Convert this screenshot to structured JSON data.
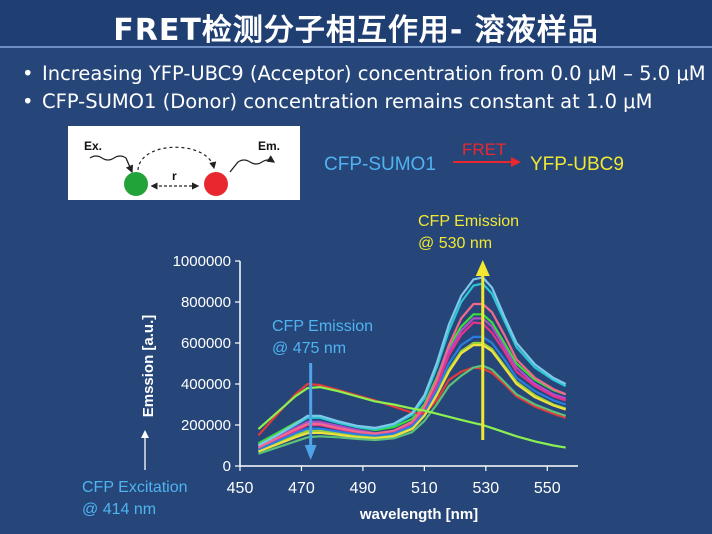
{
  "header": {
    "title": "FRET检测分子相互作用- 溶液样品"
  },
  "bullets": [
    "Increasing YFP-UBC9 (Acceptor) concentration from 0.0 μM – 5.0 μM",
    "CFP-SUMO1 (Donor) concentration remains constant at 1.0 μM"
  ],
  "scheme": {
    "ex_label": "Ex.",
    "em_label": "Em.",
    "r_label": "r",
    "donor_color": "#22a33a",
    "acceptor_color": "#e8282e"
  },
  "fret_equation": {
    "donor": "CFP-SUMO1",
    "label": "FRET",
    "acceptor": "YFP-UBC9"
  },
  "annotations": {
    "cfp_emission_530": [
      "CFP Emission",
      "@ 530 nm"
    ],
    "cfp_emission_475": [
      "CFP Emission",
      "@ 475 nm"
    ],
    "cfp_excitation": [
      "CFP Excitation",
      "@ 414 nm"
    ]
  },
  "colors": {
    "background": "#26467a",
    "title_bar": "#1f3f73",
    "cyan_text": "#4fb3f0",
    "yellow_text": "#f2e832",
    "red_text": "#e8282e"
  },
  "chart_data": {
    "type": "line",
    "xlabel": "wavelength [nm]",
    "ylabel": "Emssion [a.u.]",
    "xlim": [
      450,
      560
    ],
    "ylim": [
      0,
      1000000
    ],
    "xticks": [
      450,
      470,
      490,
      510,
      530,
      550
    ],
    "yticks": [
      0,
      200000,
      400000,
      600000,
      800000,
      1000000
    ],
    "ytick_labels": [
      "0",
      "200000",
      "400000",
      "600000",
      "800000",
      "1000000"
    ],
    "grid": false,
    "legend": "none",
    "x": [
      456,
      462,
      468,
      472,
      476,
      482,
      488,
      494,
      500,
      506,
      510,
      514,
      518,
      522,
      526,
      529,
      532,
      536,
      540,
      546,
      552,
      556
    ],
    "series": [
      {
        "color": "#3ddc3d",
        "values": [
          110000,
          160000,
          210000,
          240000,
          240000,
          215000,
          190000,
          175000,
          190000,
          230000,
          300000,
          430000,
          580000,
          680000,
          740000,
          740000,
          700000,
          600000,
          500000,
          420000,
          370000,
          350000
        ]
      },
      {
        "color": "#b04dc8",
        "values": [
          95000,
          140000,
          185000,
          215000,
          215000,
          195000,
          175000,
          160000,
          170000,
          210000,
          280000,
          410000,
          560000,
          660000,
          720000,
          720000,
          680000,
          580000,
          480000,
          400000,
          350000,
          330000
        ]
      },
      {
        "color": "#e6328c",
        "values": [
          85000,
          125000,
          170000,
          200000,
          200000,
          180000,
          162000,
          150000,
          160000,
          200000,
          270000,
          390000,
          540000,
          640000,
          700000,
          695000,
          650000,
          560000,
          460000,
          390000,
          340000,
          320000
        ]
      },
      {
        "color": "#9ad23c",
        "values": [
          75000,
          110000,
          150000,
          170000,
          172000,
          160000,
          148000,
          140000,
          150000,
          185000,
          250000,
          350000,
          470000,
          560000,
          600000,
          600000,
          570000,
          490000,
          410000,
          345000,
          300000,
          280000
        ]
      },
      {
        "color": "#2a7de0",
        "values": [
          80000,
          120000,
          160000,
          182000,
          182000,
          168000,
          155000,
          148000,
          158000,
          195000,
          260000,
          370000,
          500000,
          590000,
          630000,
          630000,
          600000,
          520000,
          430000,
          365000,
          320000,
          300000
        ]
      },
      {
        "color": "#e23a3a",
        "values": [
          150000,
          250000,
          350000,
          400000,
          395000,
          370000,
          345000,
          320000,
          290000,
          260000,
          255000,
          320000,
          420000,
          460000,
          480000,
          475000,
          455000,
          400000,
          340000,
          290000,
          255000,
          235000
        ]
      },
      {
        "color": "#2cc7d6",
        "values": [
          100000,
          150000,
          200000,
          235000,
          235000,
          210000,
          190000,
          180000,
          200000,
          250000,
          330000,
          480000,
          660000,
          800000,
          880000,
          890000,
          840000,
          710000,
          580000,
          480000,
          420000,
          390000
        ]
      },
      {
        "color": "#7ec8e8",
        "values": [
          100000,
          150000,
          205000,
          245000,
          245000,
          218000,
          196000,
          186000,
          206000,
          258000,
          345000,
          500000,
          690000,
          830000,
          910000,
          920000,
          870000,
          730000,
          600000,
          495000,
          430000,
          400000
        ]
      },
      {
        "color": "#f0e040",
        "values": [
          70000,
          105000,
          140000,
          160000,
          162000,
          152000,
          140000,
          134000,
          145000,
          180000,
          245000,
          345000,
          460000,
          550000,
          590000,
          590000,
          560000,
          480000,
          400000,
          335000,
          295000,
          275000
        ]
      },
      {
        "color": "#f26a8a",
        "values": [
          90000,
          135000,
          178000,
          205000,
          205000,
          185000,
          168000,
          158000,
          172000,
          215000,
          290000,
          420000,
          590000,
          720000,
          790000,
          790000,
          750000,
          640000,
          520000,
          430000,
          375000,
          350000
        ]
      },
      {
        "color": "#5bc07a",
        "values": [
          60000,
          90000,
          120000,
          140000,
          145000,
          140000,
          132000,
          127000,
          135000,
          165000,
          220000,
          300000,
          390000,
          440000,
          480000,
          490000,
          470000,
          410000,
          350000,
          300000,
          265000,
          245000
        ]
      },
      {
        "color": "#8cf050",
        "values": [
          180000,
          260000,
          340000,
          380000,
          385000,
          365000,
          340000,
          315000,
          300000,
          280000,
          270000,
          255000,
          240000,
          225000,
          210000,
          200000,
          185000,
          165000,
          145000,
          120000,
          100000,
          90000
        ]
      }
    ],
    "annotations": [
      {
        "text": "CFP Emission @ 475 nm",
        "x": 473
      },
      {
        "text": "CFP Emission @ 530 nm",
        "x": 529
      }
    ]
  }
}
